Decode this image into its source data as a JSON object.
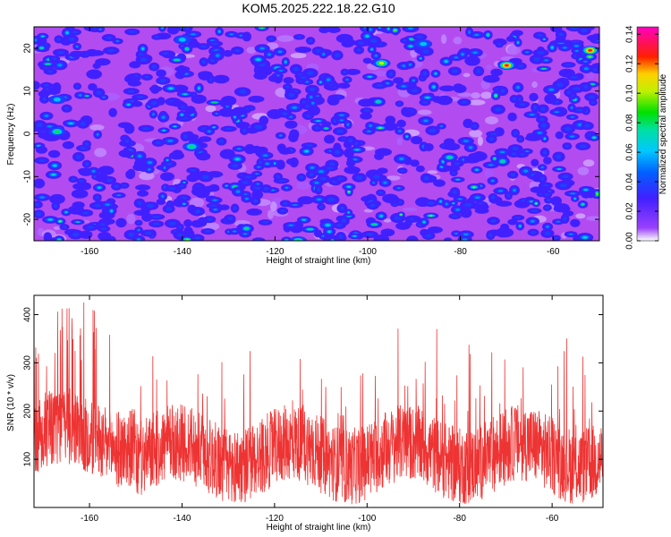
{
  "chart_data": [
    {
      "type": "heatmap",
      "title": "KOM5.2025.222.18.22.G10",
      "xlabel": "Height of straight line (km)",
      "ylabel": "Frequency (Hz)",
      "xlim": [
        -172,
        -50
      ],
      "ylim": [
        -25,
        25
      ],
      "xticks": [
        -160,
        -140,
        -120,
        -100,
        -80,
        -60
      ],
      "yticks": [
        -20,
        -10,
        0,
        10,
        20
      ],
      "colorbar": {
        "label": "Normalized spectral amplitude",
        "range": [
          0,
          0.145
        ],
        "ticks": [
          0.0,
          0.02,
          0.04,
          0.06,
          0.08,
          0.1,
          0.12,
          0.14
        ],
        "tick_labels": [
          "0.00",
          "0.02",
          "0.04",
          "0.06",
          "0.08",
          "0.10",
          "0.12",
          "0.14"
        ]
      },
      "peaks": [
        {
          "x": -70,
          "y": 16,
          "v": 0.13
        },
        {
          "x": -52,
          "y": 19.5,
          "v": 0.13
        },
        {
          "x": -97,
          "y": 16.5,
          "v": 0.11
        },
        {
          "x": -167,
          "y": 0.5,
          "v": 0.09
        },
        {
          "x": -138,
          "y": -3,
          "v": 0.08
        },
        {
          "x": -115,
          "y": -25,
          "v": 0.09
        },
        {
          "x": -167,
          "y": 8,
          "v": 0.07
        },
        {
          "x": -140,
          "y": 22,
          "v": 0.06
        },
        {
          "x": -88,
          "y": 21,
          "v": 0.06
        }
      ]
    },
    {
      "type": "line",
      "title": "",
      "xlabel": "Height of straight line (km)",
      "ylabel": "SNR (10 * v/v)",
      "xlim": [
        -172,
        -49
      ],
      "ylim": [
        0,
        440
      ],
      "xticks": [
        -160,
        -140,
        -120,
        -100,
        -80,
        -60
      ],
      "yticks": [
        100,
        200,
        300,
        400
      ],
      "series": [
        {
          "color": "#ee3333",
          "description_baseline": 120,
          "peak_max": 430
        }
      ]
    }
  ]
}
